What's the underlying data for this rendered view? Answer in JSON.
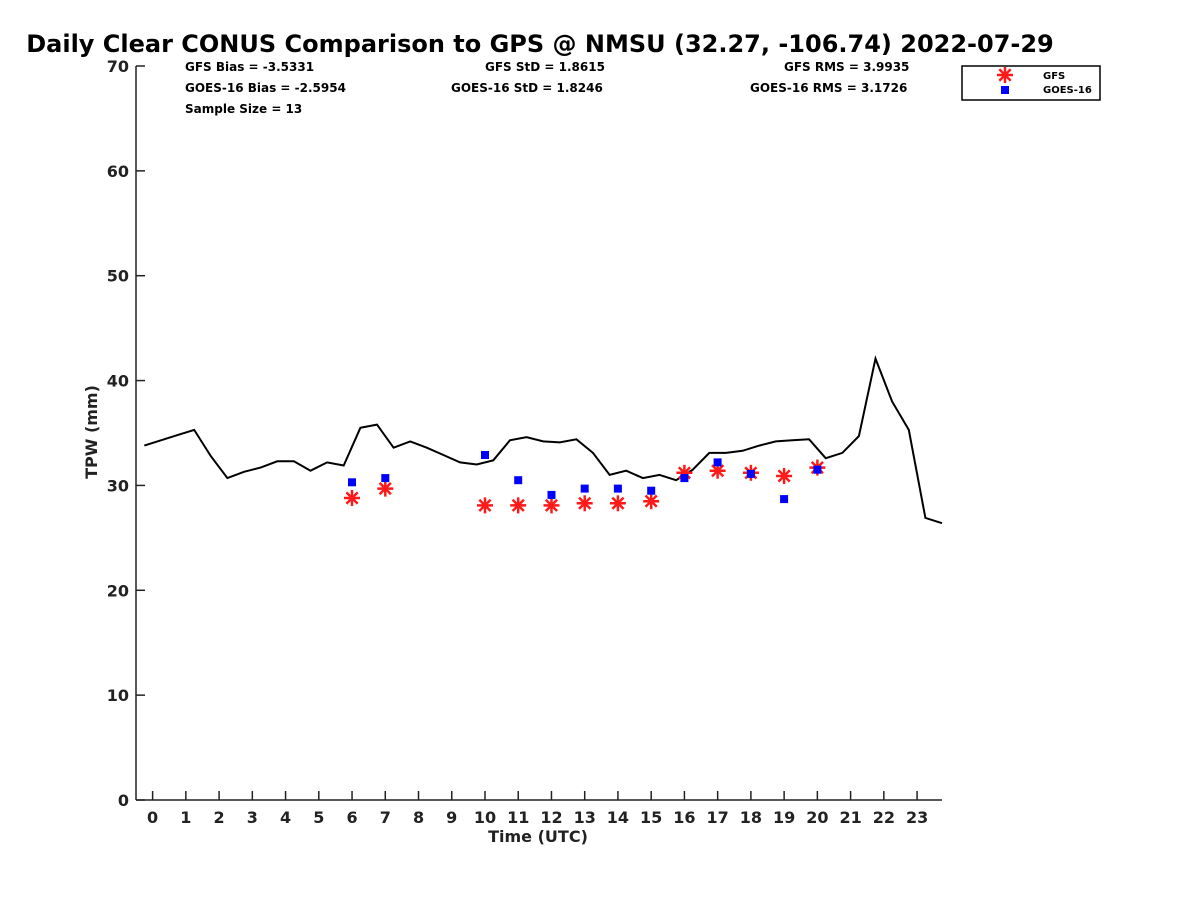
{
  "chart_data": {
    "type": "scatter",
    "title": "Daily Clear CONUS Comparison to GPS @ NMSU (32.27, -106.74) 2022-07-29",
    "xlabel": "Time (UTC)",
    "ylabel": "TPW (mm)",
    "xlim": [
      -0.5,
      23.75
    ],
    "ylim": [
      0,
      70
    ],
    "x_ticks": [
      0,
      1,
      2,
      3,
      4,
      5,
      6,
      7,
      8,
      9,
      10,
      11,
      12,
      13,
      14,
      15,
      16,
      17,
      18,
      19,
      20,
      21,
      22,
      23
    ],
    "y_ticks": [
      0,
      10,
      20,
      30,
      40,
      50,
      60,
      70
    ],
    "grid": false,
    "legend_position": "top-right",
    "stats": {
      "gfs_bias": "GFS Bias = -3.5331",
      "goes_bias": "GOES-16 Bias = -2.5954",
      "sample_size": "Sample Size = 13",
      "gfs_std": "GFS StD = 1.8615",
      "goes_std": "GOES-16 StD = 1.8246",
      "gfs_rms": "GFS RMS = 3.9935",
      "goes_rms": "GOES-16 RMS = 3.1726"
    },
    "series": [
      {
        "kind": "line",
        "color": "#000000",
        "x": [
          -0.25,
          0.25,
          0.75,
          1.25,
          1.75,
          2.25,
          2.75,
          3.25,
          3.75,
          4.25,
          4.75,
          5.25,
          5.75,
          6.25,
          6.75,
          7.25,
          7.75,
          8.25,
          8.75,
          9.25,
          9.75,
          10.25,
          10.75,
          11.25,
          11.75,
          12.25,
          12.75,
          13.25,
          13.75,
          14.25,
          14.75,
          15.25,
          15.75,
          16.25,
          16.75,
          17.25,
          17.75,
          18.25,
          18.75,
          19.25,
          19.75,
          20.25,
          20.75,
          21.25,
          21.75,
          22.25,
          22.75,
          23.25,
          23.75
        ],
        "y": [
          33.8,
          34.3,
          34.8,
          35.3,
          32.8,
          30.7,
          31.3,
          31.7,
          32.3,
          32.3,
          31.4,
          32.2,
          31.9,
          35.5,
          35.8,
          33.6,
          34.2,
          33.6,
          32.9,
          32.2,
          32.0,
          32.4,
          34.3,
          34.6,
          34.2,
          34.1,
          34.4,
          33.1,
          31.0,
          31.4,
          30.7,
          31.0,
          30.5,
          31.5,
          33.1,
          33.1,
          33.3,
          33.8,
          34.2,
          34.3,
          34.4,
          32.6,
          33.1,
          34.7,
          42.1,
          38.0,
          35.3,
          26.9,
          26.4
        ]
      },
      {
        "name": "GFS",
        "kind": "star",
        "color": "#ff1a1a",
        "x": [
          6,
          7,
          10,
          11,
          12,
          13,
          14,
          15,
          16,
          17,
          18,
          19,
          20
        ],
        "y": [
          28.8,
          29.7,
          28.1,
          28.1,
          28.1,
          28.3,
          28.3,
          28.5,
          31.2,
          31.4,
          31.2,
          30.9,
          31.7
        ]
      },
      {
        "name": "GOES-16",
        "kind": "square",
        "color": "#0000ff",
        "x": [
          6,
          7,
          10,
          11,
          12,
          13,
          14,
          15,
          16,
          17,
          18,
          19,
          20
        ],
        "y": [
          30.3,
          30.7,
          32.9,
          30.5,
          29.1,
          29.7,
          29.7,
          29.5,
          30.7,
          32.2,
          31.1,
          28.7,
          31.5
        ]
      }
    ]
  }
}
